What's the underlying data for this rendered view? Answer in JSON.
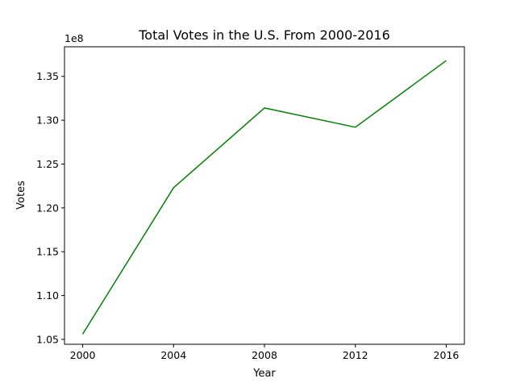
{
  "chart_data": {
    "type": "line",
    "title": "Total Votes in the U.S. From 2000-2016",
    "xlabel": "Year",
    "ylabel": "Votes",
    "y_offset_label": "1e8",
    "x": [
      2000,
      2004,
      2008,
      2012,
      2016
    ],
    "series": [
      {
        "values": [
          105600000,
          122300000,
          131400000,
          129200000,
          136800000
        ],
        "color": "#008000"
      }
    ],
    "x_ticks": [
      2000,
      2004,
      2008,
      2012,
      2016
    ],
    "x_tick_labels": [
      "2000",
      "2004",
      "2008",
      "2012",
      "2016"
    ],
    "y_ticks": [
      1.05,
      1.1,
      1.15,
      1.2,
      1.25,
      1.3,
      1.35
    ],
    "y_tick_labels": [
      "1.05",
      "1.10",
      "1.15",
      "1.20",
      "1.25",
      "1.30",
      "1.35"
    ],
    "xlim": [
      1999.2,
      2016.8
    ],
    "ylim": [
      1.0444,
      1.3838
    ],
    "y_scale": 100000000,
    "grid": false,
    "legend": false
  }
}
